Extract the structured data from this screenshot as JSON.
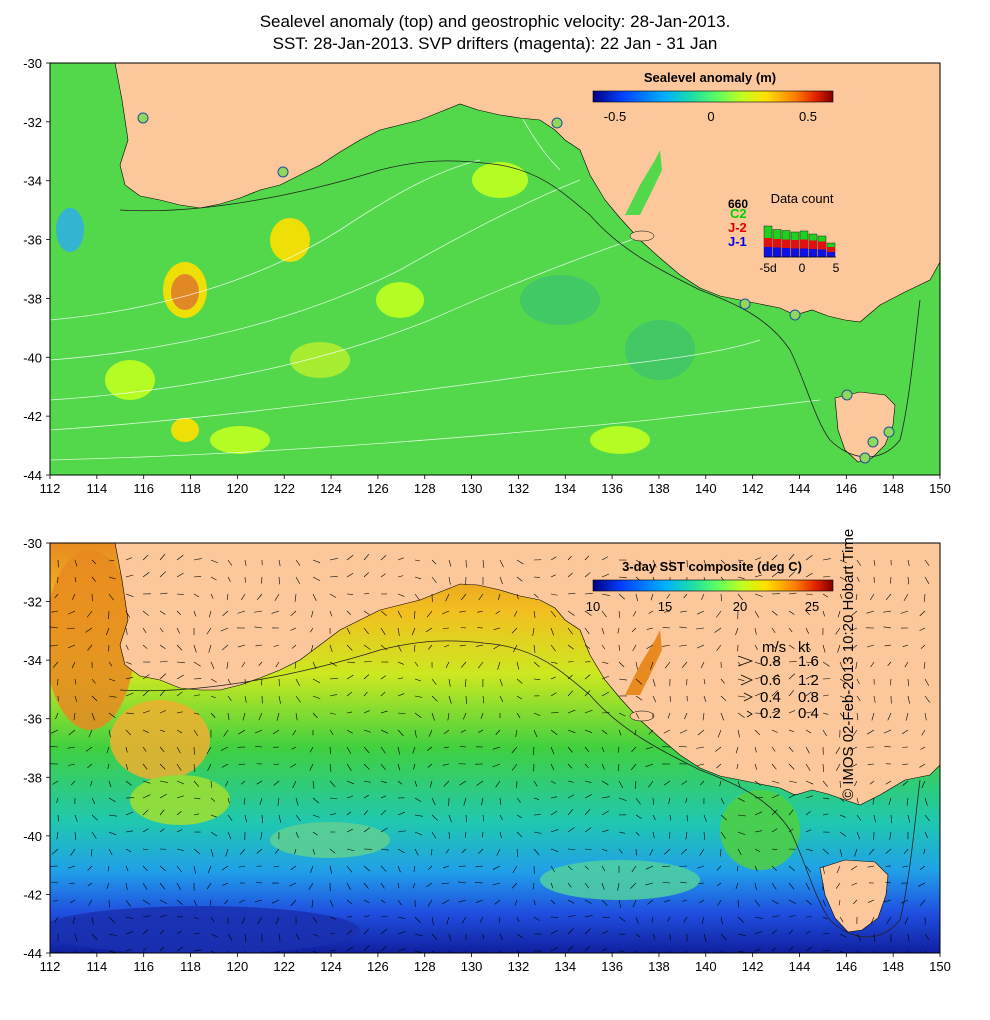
{
  "titles": {
    "line1": "Sealevel anomaly (top) and geostrophic velocity: 28-Jan-2013.",
    "line2": "SST: 28-Jan-2013. SVP drifters (magenta): 22 Jan - 31 Jan"
  },
  "axes": {
    "x_ticks": [
      "112",
      "114",
      "116",
      "118",
      "120",
      "122",
      "124",
      "126",
      "128",
      "130",
      "132",
      "134",
      "136",
      "138",
      "140",
      "142",
      "144",
      "146",
      "148",
      "150"
    ],
    "y_ticks": [
      "-30",
      "-32",
      "-34",
      "-36",
      "-38",
      "-40",
      "-42",
      "-44"
    ]
  },
  "top_panel": {
    "colorbar": {
      "title": "Sealevel anomaly (m)",
      "ticks": [
        "-0.5",
        "0",
        "0.5"
      ],
      "colors": [
        "#00007f",
        "#0040ff",
        "#00b0ff",
        "#20e0c0",
        "#60ff60",
        "#c0ff20",
        "#ffe000",
        "#ff8000",
        "#e02000",
        "#800000"
      ]
    },
    "data_count": {
      "title": "Data count",
      "max_label": "660",
      "sat_labels": [
        {
          "label": "C2",
          "color": "#00d000"
        },
        {
          "label": "J-2",
          "color": "#e00000"
        },
        {
          "label": "J-1",
          "color": "#0000e0"
        }
      ],
      "x_labels": [
        "-5d",
        "0",
        "5"
      ],
      "bars_c2": [
        0.62,
        0.55,
        0.53,
        0.5,
        0.52,
        0.46,
        0.42,
        0.28
      ],
      "bars_j2": [
        0.38,
        0.36,
        0.35,
        0.34,
        0.35,
        0.33,
        0.31,
        0.2
      ],
      "bars_j1": [
        0.2,
        0.19,
        0.18,
        0.17,
        0.17,
        0.16,
        0.15,
        0.1
      ]
    }
  },
  "bottom_panel": {
    "colorbar": {
      "title": "3-day SST composite (deg C)",
      "ticks": [
        "10",
        "15",
        "20",
        "25"
      ],
      "colors": [
        "#00007f",
        "#0040ff",
        "#00b0ff",
        "#20e0c0",
        "#60ff60",
        "#c0ff20",
        "#ffe000",
        "#ff8000",
        "#e02000",
        "#800000"
      ]
    },
    "speed_legend": {
      "header_ms": "m/s",
      "header_kt": "kt",
      "rows": [
        {
          "ms": "0.8",
          "kt": "1.6"
        },
        {
          "ms": "0.6",
          "kt": "1.2"
        },
        {
          "ms": "0.4",
          "kt": "0.8"
        },
        {
          "ms": "0.2",
          "kt": "0.4"
        }
      ]
    }
  },
  "credit": "© IMOS 02-Feb-2013 10:20 Hobart Time",
  "colors": {
    "land": "#fcc89b",
    "ocean_slA": "#52d84a",
    "sst_warm": "#f0a030",
    "sst_cold": "#2060e0"
  }
}
